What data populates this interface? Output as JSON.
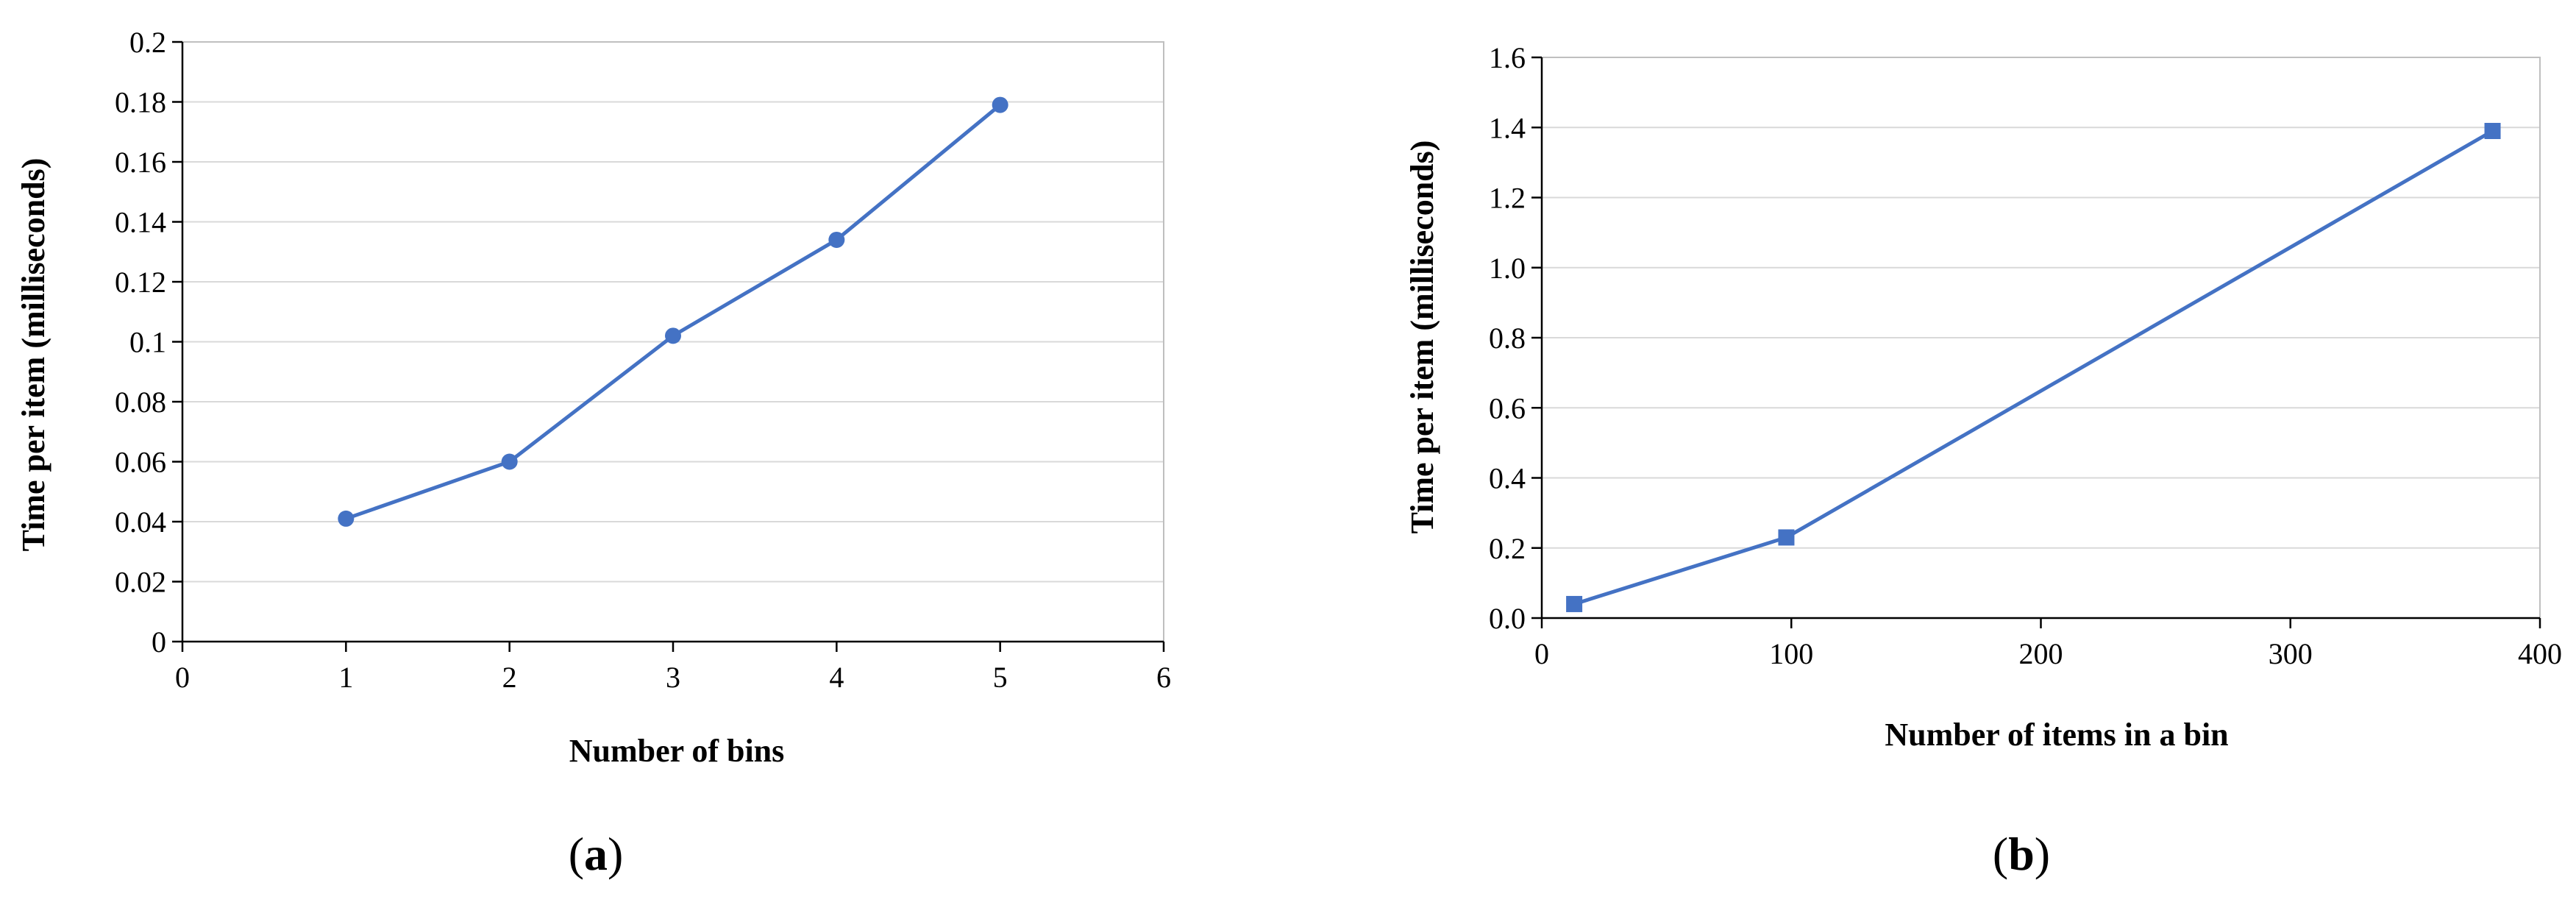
{
  "chart_data": [
    {
      "type": "line",
      "panel_label": "a",
      "xlabel": "Number of bins",
      "ylabel": "Time per item (milliseconds)",
      "xlim": [
        0,
        6
      ],
      "ylim": [
        0,
        0.2
      ],
      "xticks": [
        0,
        1,
        2,
        3,
        4,
        5,
        6
      ],
      "xtick_labels": [
        "0",
        "1",
        "2",
        "3",
        "4",
        "5",
        "6"
      ],
      "yticks": [
        0,
        0.02,
        0.04,
        0.06,
        0.08,
        0.1,
        0.12,
        0.14,
        0.16,
        0.18,
        0.2
      ],
      "ytick_labels": [
        "0",
        "0.02",
        "0.04",
        "0.06",
        "0.08",
        "0.1",
        "0.12",
        "0.14",
        "0.16",
        "0.18",
        "0.2"
      ],
      "grid": true,
      "marker": "circle",
      "color": "#4472C4",
      "series": [
        {
          "x": [
            1,
            2,
            3,
            4,
            5
          ],
          "y": [
            0.041,
            0.06,
            0.102,
            0.134,
            0.179
          ]
        }
      ]
    },
    {
      "type": "line",
      "panel_label": "b",
      "xlabel": "Number of items in a bin",
      "ylabel": "Time per item (milliseconds)",
      "xlim": [
        0,
        400
      ],
      "ylim": [
        0,
        1.6
      ],
      "xticks": [
        0,
        100,
        200,
        300,
        400
      ],
      "xtick_labels": [
        "0",
        "100",
        "200",
        "300",
        "400"
      ],
      "yticks": [
        0,
        0.2,
        0.4,
        0.6,
        0.8,
        1.0,
        1.2,
        1.4,
        1.6
      ],
      "ytick_labels": [
        "0.0",
        "0.2",
        "0.4",
        "0.6",
        "0.8",
        "1.0",
        "1.2",
        "1.4",
        "1.6"
      ],
      "grid": true,
      "marker": "square",
      "color": "#4472C4",
      "series": [
        {
          "x": [
            13,
            98,
            381
          ],
          "y": [
            0.04,
            0.23,
            1.39
          ]
        }
      ]
    }
  ]
}
